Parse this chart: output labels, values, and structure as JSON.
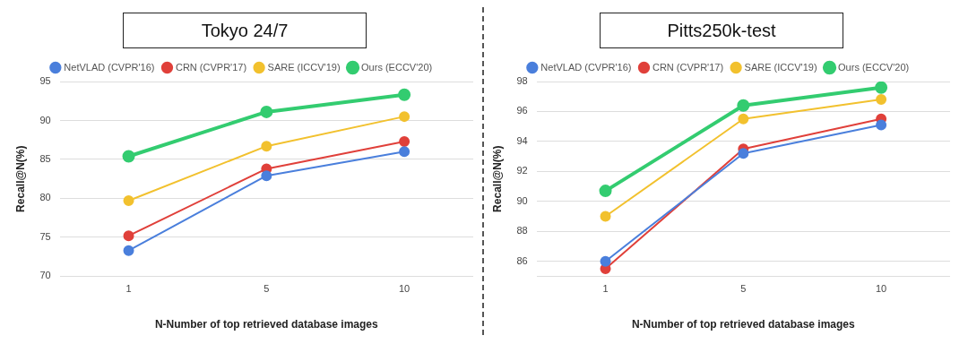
{
  "chart_data": [
    {
      "type": "line",
      "title": "Tokyo 24/7",
      "xlabel": "N-Number of top retrieved database images",
      "ylabel": "Recall@N(%)",
      "categories": [
        "1",
        "5",
        "10"
      ],
      "ylim": [
        70,
        95
      ],
      "yticks": [
        70,
        75,
        80,
        85,
        90,
        95
      ],
      "grid": "y",
      "legend": "top",
      "marker": "circle",
      "series": [
        {
          "name": "NetVLAD (CVPR'16)",
          "color": "#4a7fdc",
          "values": [
            73.3,
            82.9,
            86.0
          ]
        },
        {
          "name": "CRN (CVPR'17)",
          "color": "#e0403a",
          "values": [
            75.2,
            83.8,
            87.3
          ]
        },
        {
          "name": "SARE (ICCV'19)",
          "color": "#f2c12e",
          "values": [
            79.7,
            86.7,
            90.5
          ]
        },
        {
          "name": "Ours (ECCV'20)",
          "color": "#33cc70",
          "values": [
            85.4,
            91.1,
            93.3
          ]
        }
      ]
    },
    {
      "type": "line",
      "title": "Pitts250k-test",
      "xlabel": "N-Number of top retrieved database images",
      "ylabel": "Recall@N(%)",
      "categories": [
        "1",
        "5",
        "10"
      ],
      "ylim": [
        85,
        98
      ],
      "yticks": [
        {
          "value": 85,
          "label": null
        },
        86,
        88,
        90,
        92,
        94,
        96,
        98
      ],
      "grid": "y",
      "legend": "top",
      "marker": "circle",
      "series": [
        {
          "name": "NetVLAD (CVPR'16)",
          "color": "#4a7fdc",
          "values": [
            86.0,
            93.2,
            95.1
          ]
        },
        {
          "name": "CRN (CVPR'17)",
          "color": "#e0403a",
          "values": [
            85.5,
            93.5,
            95.5
          ]
        },
        {
          "name": "SARE (ICCV'19)",
          "color": "#f2c12e",
          "values": [
            89.0,
            95.5,
            96.8
          ]
        },
        {
          "name": "Ours (ECCV'20)",
          "color": "#33cc70",
          "values": [
            90.7,
            96.4,
            97.6
          ]
        }
      ]
    }
  ]
}
